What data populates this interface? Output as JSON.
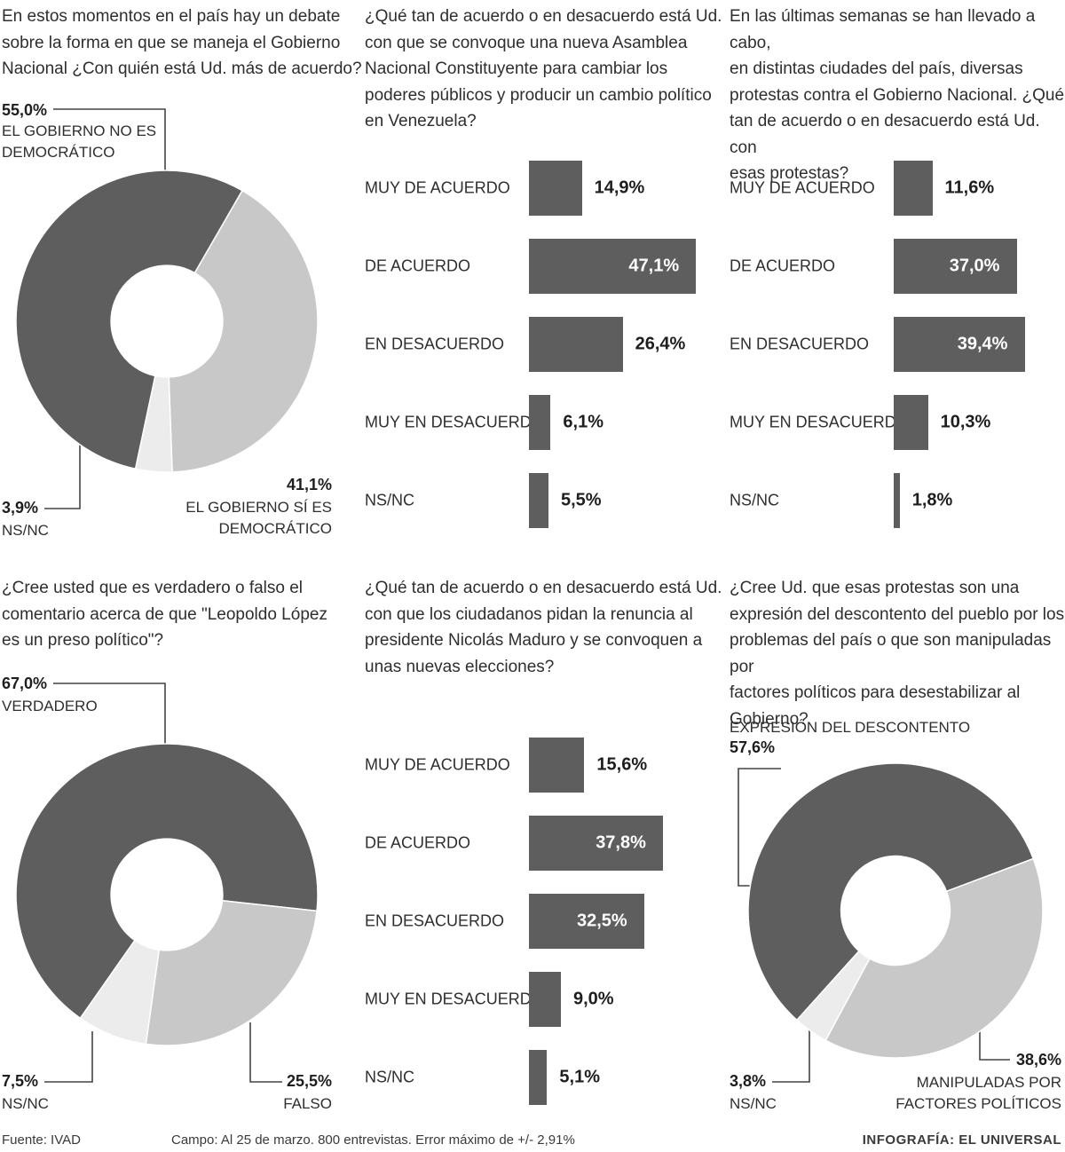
{
  "colors": {
    "dark": "#5e5e5e",
    "light": "#c8c8c8",
    "lighter": "#ececec",
    "leader": "#444444"
  },
  "chart_data": [
    {
      "type": "pie",
      "title": "En estos momentos en el país hay un debate\nsobre la forma en que se maneja el Gobierno\nNacional ¿Con quién está Ud. más de acuerdo?",
      "slices": [
        {
          "label": "EL GOBIERNO NO ES\nDEMOCRÁTICO",
          "value": 55.0,
          "text": "55,0%"
        },
        {
          "label": "EL GOBIERNO SÍ ES\nDEMOCRÁTICO",
          "value": 41.1,
          "text": "41,1%"
        },
        {
          "label": "NS/NC",
          "value": 3.9,
          "text": "3,9%"
        }
      ]
    },
    {
      "type": "bar",
      "orientation": "horizontal",
      "title": "¿Qué tan de acuerdo o en desacuerdo está Ud.\ncon que se convoque una nueva Asamblea\nNacional Constituyente para cambiar los\npoderes públicos y producir un cambio político\nen Venezuela?",
      "categories": [
        "MUY DE ACUERDO",
        "DE ACUERDO",
        "EN DESACUERDO",
        "MUY EN DESACUERDO",
        "NS/NC"
      ],
      "values": [
        14.9,
        47.1,
        26.4,
        6.1,
        5.5
      ],
      "labels": [
        "14,9%",
        "47,1%",
        "26,4%",
        "6,1%",
        "5,5%"
      ]
    },
    {
      "type": "bar",
      "orientation": "horizontal",
      "title": "En las últimas semanas se han llevado a cabo,\nen distintas ciudades del país, diversas\nprotestas contra el Gobierno Nacional. ¿Qué\ntan de acuerdo o en desacuerdo está Ud. con\nesas protestas?",
      "categories": [
        "MUY DE ACUERDO",
        "DE ACUERDO",
        "EN DESACUERDO",
        "MUY EN DESACUERDO",
        "NS/NC"
      ],
      "values": [
        11.6,
        37.0,
        39.4,
        10.3,
        1.8
      ],
      "labels": [
        "11,6%",
        "37,0%",
        "39,4%",
        "10,3%",
        "1,8%"
      ]
    },
    {
      "type": "pie",
      "title": "¿Cree usted que es verdadero o falso el\ncomentario acerca de que \"Leopoldo López\nes un preso político\"?",
      "slices": [
        {
          "label": "VERDADERO",
          "value": 67.0,
          "text": "67,0%"
        },
        {
          "label": "FALSO",
          "value": 25.5,
          "text": "25,5%"
        },
        {
          "label": "NS/NC",
          "value": 7.5,
          "text": "7,5%"
        }
      ]
    },
    {
      "type": "bar",
      "orientation": "horizontal",
      "title": "¿Qué tan de acuerdo o en desacuerdo está Ud.\ncon que los ciudadanos pidan la renuncia al\npresidente Nicolás Maduro y se convoquen a\nunas nuevas elecciones?",
      "categories": [
        "MUY DE ACUERDO",
        "DE ACUERDO",
        "EN DESACUERDO",
        "MUY EN DESACUERDO",
        "NS/NC"
      ],
      "values": [
        15.6,
        37.8,
        32.5,
        9.0,
        5.1
      ],
      "labels": [
        "15,6%",
        "37,8%",
        "32,5%",
        "9,0%",
        "5,1%"
      ]
    },
    {
      "type": "pie",
      "title": "¿Cree Ud. que esas protestas son una\nexpresión del descontento del pueblo por los\nproblemas del país o que son manipuladas por\nfactores políticos para desestabilizar al\nGobierno?",
      "slices": [
        {
          "label": "EXPRESIÓN DEL DESCONTENTO",
          "value": 57.6,
          "text": "57,6%"
        },
        {
          "label": "MANIPULADAS POR\nFACTORES POLÍTICOS",
          "value": 38.6,
          "text": "38,6%"
        },
        {
          "label": "NS/NC",
          "value": 3.8,
          "text": "3,8%"
        }
      ]
    }
  ],
  "footer": {
    "source": "Fuente: IVAD",
    "fieldwork": "Campo: Al 25 de marzo. 800 entrevistas. Error máximo de +/- 2,91%",
    "credit": "INFOGRAFÍA: EL UNIVERSAL"
  }
}
